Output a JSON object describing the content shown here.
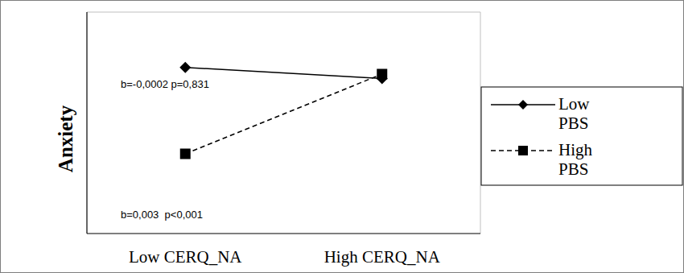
{
  "chart_data": {
    "type": "line",
    "y_label": "Anxiety",
    "categories": [
      "Low CERQ_NA",
      "High CERQ_NA"
    ],
    "series": [
      {
        "name": "Low PBS",
        "color": "#000000",
        "marker": "diamond",
        "line_style": "solid",
        "values": [
          7.5,
          7.0
        ]
      },
      {
        "name": "High PBS",
        "color": "#000000",
        "marker": "square",
        "line_style": "dashed",
        "values": [
          3.6,
          7.2
        ]
      }
    ],
    "annotations": [
      "b=-0,0002 p=0,831",
      "b=0,003  p<0,001"
    ],
    "ylim": [
      0,
      10
    ],
    "tick_labels": "x",
    "legend": "right",
    "grid": false
  }
}
